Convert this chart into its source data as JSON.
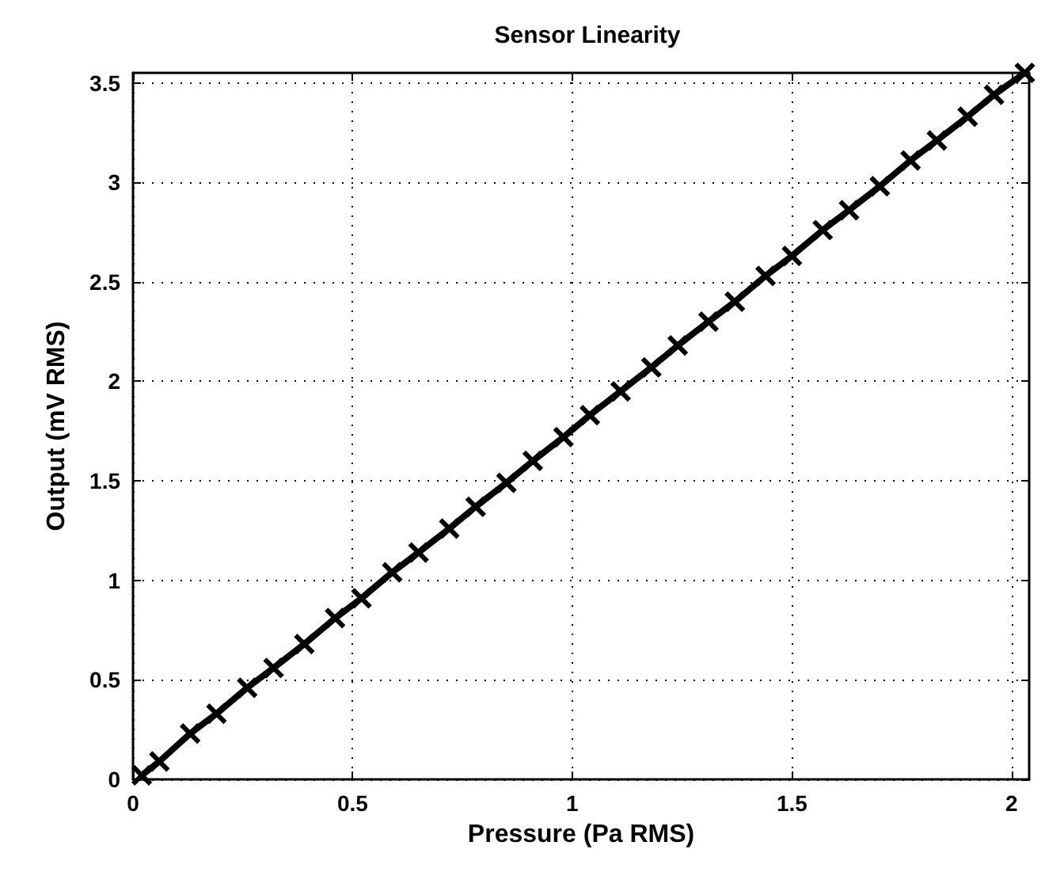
{
  "chart_data": {
    "type": "line",
    "title": "Sensor Linearity",
    "xlabel": "Pressure (Pa RMS)",
    "ylabel": "Output (mV RMS)",
    "x": [
      0.02,
      0.06,
      0.13,
      0.19,
      0.26,
      0.32,
      0.39,
      0.46,
      0.52,
      0.59,
      0.65,
      0.72,
      0.78,
      0.85,
      0.91,
      0.98,
      1.04,
      1.11,
      1.18,
      1.24,
      1.31,
      1.37,
      1.44,
      1.5,
      1.57,
      1.63,
      1.7,
      1.77,
      1.83,
      1.9,
      1.96,
      2.03
    ],
    "series": [
      {
        "color": "#000000",
        "values": [
          0.02,
          0.09,
          0.23,
          0.33,
          0.46,
          0.56,
          0.68,
          0.81,
          0.91,
          1.04,
          1.14,
          1.26,
          1.37,
          1.49,
          1.6,
          1.72,
          1.83,
          1.95,
          2.07,
          2.18,
          2.3,
          2.4,
          2.53,
          2.63,
          2.76,
          2.86,
          2.98,
          3.11,
          3.21,
          3.33,
          3.44,
          3.55
        ]
      }
    ],
    "xlim": [
      0,
      2.04
    ],
    "ylim": [
      0,
      3.55
    ],
    "xticks": [
      0,
      0.5,
      1,
      1.5,
      2
    ],
    "yticks": [
      0,
      0.5,
      1,
      1.5,
      2,
      2.5,
      3,
      3.5
    ],
    "grid": true,
    "marker": "cross",
    "line_style": "solid"
  }
}
